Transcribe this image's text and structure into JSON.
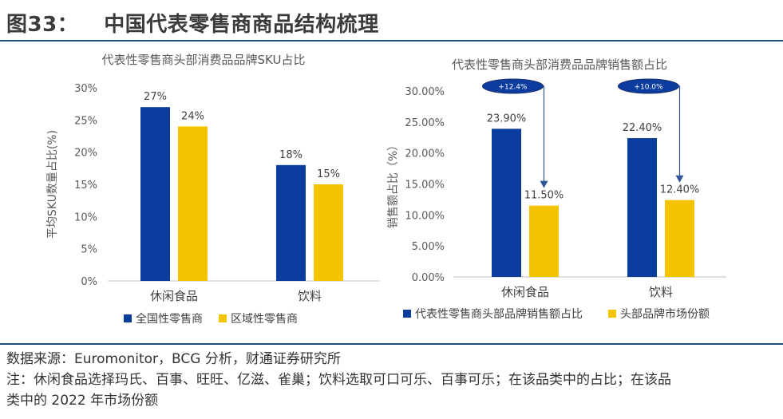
{
  "figure": {
    "number": "图33：",
    "title": "中国代表零售商商品结构梳理"
  },
  "colors": {
    "blue": "#0b3d9e",
    "yellow": "#f5c400",
    "rule": "#1f4e79"
  },
  "chart_data": [
    {
      "type": "bar",
      "title": "代表性零售商头部消费品品牌SKU占比",
      "ylabel": "平均SKU数量占比(%)",
      "categories": [
        "休闲食品",
        "饮料"
      ],
      "ylim": [
        0,
        30
      ],
      "yticks": [
        "0%",
        "5%",
        "10%",
        "15%",
        "20%",
        "25%",
        "30%"
      ],
      "series": [
        {
          "name": "全国性零售商",
          "color": "#0b3d9e",
          "values": [
            27,
            18
          ],
          "labels": [
            "27%",
            "18%"
          ]
        },
        {
          "name": "区域性零售商",
          "color": "#f5c400",
          "values": [
            24,
            15
          ],
          "labels": [
            "24%",
            "15%"
          ]
        }
      ],
      "legend": "bottom"
    },
    {
      "type": "bar",
      "title": "代表性零售商头部消费品品牌销售额占比",
      "ylabel": "销售额占比（%）",
      "categories": [
        "休闲食品",
        "饮料"
      ],
      "ylim": [
        0,
        30
      ],
      "yticks": [
        "0.00%",
        "5.00%",
        "10.00%",
        "15.00%",
        "20.00%",
        "25.00%",
        "30.00%"
      ],
      "series": [
        {
          "name": "代表性零售商头部品牌销售额占比",
          "color": "#0b3d9e",
          "values": [
            23.9,
            22.4
          ],
          "labels": [
            "23.90%",
            "22.40%"
          ]
        },
        {
          "name": "头部品牌市场份额",
          "color": "#f5c400",
          "values": [
            11.5,
            12.4
          ],
          "labels": [
            "11.50%",
            "12.40%"
          ]
        }
      ],
      "annotations": [
        "+12.4%",
        "+10.0%"
      ],
      "legend": "bottom"
    }
  ],
  "notes": {
    "source": "数据来源：Euromonitor，BCG 分析，财通证券研究所",
    "note_line1": "注：休闲食品选择玛氏、百事、旺旺、亿滋、雀巢；饮料选取可口可乐、百事可乐；在该品类中的占比；在该品",
    "note_line2": "类中的 2022 年市场份额"
  }
}
